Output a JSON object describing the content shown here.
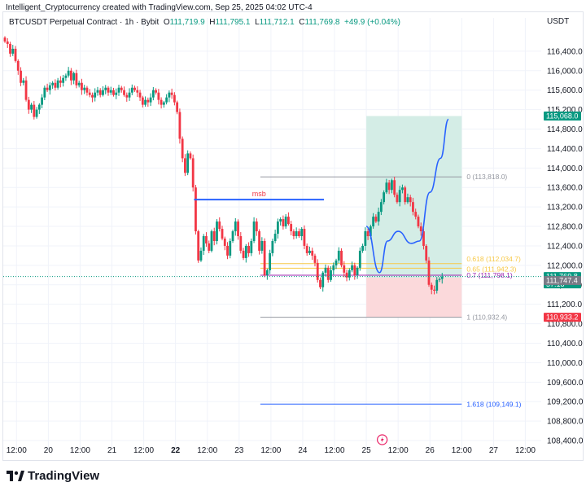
{
  "caption": "Intelligent_Cryptocurrency created with TradingView.com, Sep 25, 2025 04:02 UTC-4",
  "symbol": {
    "name": "BTCUSDT Perpetual Contract · 1h · Bybit",
    "o_label": "O",
    "o": "111,719.9",
    "h_label": "H",
    "h": "111,795.1",
    "l_label": "L",
    "l": "111,712.1",
    "c_label": "C",
    "c": "111,769.8",
    "change": "+49.9 (+0.04%)"
  },
  "currency": "USDT",
  "footer": {
    "brand": "TradingView"
  },
  "colors": {
    "up": "#089981",
    "down": "#f23645",
    "grid": "#f0f3fa",
    "msb": "#2962ff",
    "fib_level": "#9598a1",
    "fib_0618": "#f7c948",
    "fib_07": "#9c27b0",
    "fib_1618": "#2962ff",
    "target_zone": "#d4ede6",
    "stop_zone": "#fbd9db",
    "projection": "#2962ff"
  },
  "chart_data": {
    "type": "candlestick",
    "timeframe": "1h",
    "x_tick_labels": [
      "12:00",
      "20",
      "12:00",
      "21",
      "12:00",
      "22",
      "12:00",
      "23",
      "12:00",
      "24",
      "12:00",
      "25",
      "12:00",
      "26",
      "12:00",
      "27",
      "12:00"
    ],
    "y_tick_labels": [
      "116,400.0",
      "116,000.0",
      "115,600.0",
      "115,200.0",
      "114,800.0",
      "114,400.0",
      "114,000.0",
      "113,600.0",
      "113,200.0",
      "112,800.0",
      "112,400.0",
      "112,000.0",
      "111,600.0",
      "111,200.0",
      "110,800.0",
      "110,400.0",
      "110,000.0",
      "109,600.0",
      "109,200.0",
      "108,800.0",
      "108,400.0"
    ],
    "y_range": [
      108250,
      116850
    ],
    "x_range": [
      "2025-09-19 07:00",
      "2025-09-27 18:00"
    ],
    "closes": [
      116600,
      116550,
      116350,
      116450,
      116200,
      116000,
      115750,
      115800,
      115400,
      115200,
      115300,
      115050,
      115200,
      115300,
      115450,
      115650,
      115600,
      115700,
      115750,
      115650,
      115800,
      115750,
      115850,
      115900,
      116000,
      115800,
      115950,
      115700,
      115750,
      115600,
      115650,
      115550,
      115500,
      115450,
      115550,
      115600,
      115500,
      115600,
      115650,
      115550,
      115600,
      115500,
      115550,
      115650,
      115600,
      115500,
      115450,
      115550,
      115650,
      115600,
      115550,
      115450,
      115300,
      115400,
      115350,
      115450,
      115600,
      115550,
      115400,
      115300,
      115350,
      115450,
      115550,
      115500,
      115350,
      115150,
      114600,
      114200,
      113900,
      114300,
      114200,
      113600,
      112700,
      112100,
      112300,
      112600,
      112450,
      112300,
      112700,
      112500,
      112900,
      112750,
      112550,
      112400,
      112200,
      112500,
      112700,
      112900,
      112600,
      112300,
      112150,
      112400,
      112250,
      112500,
      112900,
      112700,
      112300,
      112500,
      111800,
      111900,
      112250,
      112500,
      112650,
      112900,
      112950,
      112800,
      113000,
      112850,
      112700,
      112600,
      112700,
      112600,
      112750,
      112400,
      112250,
      112300,
      112200,
      112050,
      111700,
      111550,
      111850,
      111950,
      111700,
      111900,
      112000,
      112100,
      112300,
      112000,
      111850,
      111750,
      111900,
      112000,
      111800,
      111950,
      112300,
      112400,
      112700,
      112600,
      112800,
      113000,
      112900,
      113100,
      113300,
      113500,
      113700,
      113550,
      113750,
      113450,
      113300,
      113550,
      113600,
      113300,
      113400,
      113300,
      113100,
      113000,
      112800,
      112700,
      112400,
      112100,
      111600,
      111500,
      111480,
      111700,
      111720,
      111770
    ],
    "current_price": 111769.8,
    "countdown": "57:18",
    "series": [
      {
        "name": "fib",
        "levels": [
          {
            "ratio": 0,
            "label": "0 (113,818.0)",
            "price": 113818.0
          },
          {
            "ratio": 0.618,
            "label": "0.618 (112,034.7)",
            "price": 112034.7
          },
          {
            "ratio": 0.65,
            "label": "0.65 (111,942.3)",
            "price": 111942.3
          },
          {
            "ratio": 0.7,
            "label": "0.7 (111,798.1)",
            "price": 111798.1
          },
          {
            "ratio": 1,
            "label": "1 (110,932.4)",
            "price": 110932.4
          },
          {
            "ratio": 1.618,
            "label": "1.618 (109,149.1)",
            "price": 109149.1
          }
        ]
      }
    ],
    "msb": {
      "label": "msb",
      "price": 113350,
      "from": "2025-09-22 07:00",
      "to": "2025-09-24 08:00"
    },
    "position": {
      "target_label": "115,068.0",
      "target": 115068.0,
      "entry_label": "111,747.4",
      "entry": 111747.4,
      "stop_label": "110,933.2",
      "stop": 110933.2,
      "from": "2025-09-25 00:00",
      "to": "2025-09-26 12:00"
    },
    "projection": [
      [
        "2025-09-25 00:00",
        112800
      ],
      [
        "2025-09-25 05:00",
        111850
      ],
      [
        "2025-09-25 08:00",
        112500
      ],
      [
        "2025-09-25 12:00",
        112700
      ],
      [
        "2025-09-25 17:00",
        112450
      ],
      [
        "2025-09-25 20:00",
        112500
      ],
      [
        "2025-09-26 00:00",
        113500
      ],
      [
        "2025-09-26 04:00",
        114200
      ],
      [
        "2025-09-26 07:00",
        115000
      ]
    ]
  }
}
